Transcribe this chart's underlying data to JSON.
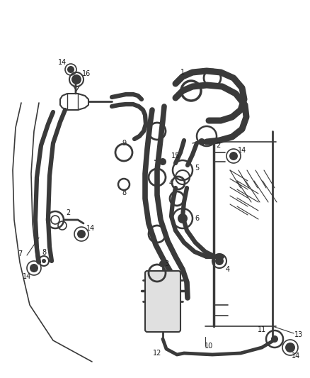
{
  "bg_color": "#ffffff",
  "line_color": "#3a3a3a",
  "label_color": "#1a1a1a",
  "lw_hose": 4.5,
  "lw_pipe": 2.0,
  "lw_thin": 1.2,
  "fs_label": 7
}
